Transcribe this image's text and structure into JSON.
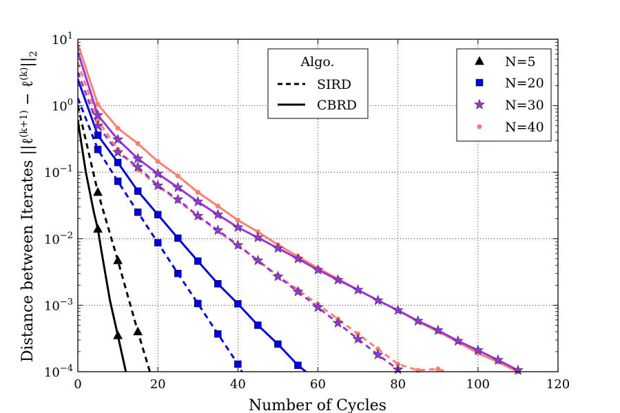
{
  "chart_data": {
    "type": "line",
    "title": "",
    "xlabel": "Number of Cycles",
    "ylabel": "Distance between Iterates ||ℓ(k+1) − ℓ(k)||2",
    "ylabel_parts": {
      "main": "Distance between Iterates ||ℓ",
      "sup1": "(k+1)",
      "mid": " − ℓ",
      "sup2": "(k)",
      "end": "||",
      "sub": "2"
    },
    "xlim": [
      0,
      120
    ],
    "ylim_log10": [
      -4,
      1
    ],
    "yscale": "log",
    "x_ticks": [
      0,
      20,
      40,
      60,
      80,
      100,
      120
    ],
    "y_tick_exponents": [
      -4,
      -3,
      -2,
      -1,
      0,
      1
    ],
    "y_tick_base": "10",
    "grid": true,
    "legend_algo": {
      "title": "Algo.",
      "placement": "top-center",
      "entries": [
        {
          "label": "SIRD",
          "style": "dashed"
        },
        {
          "label": "CBRD",
          "style": "solid"
        }
      ]
    },
    "legend_n": {
      "placement": "top-right",
      "entries": [
        {
          "label": "N=5",
          "marker": "triangle",
          "color": "#000000"
        },
        {
          "label": "N=20",
          "marker": "square",
          "color": "#0000dd"
        },
        {
          "label": "N=30",
          "marker": "star",
          "color": "#9933dd"
        },
        {
          "label": "N=40",
          "marker": "circle",
          "color": "#fa8072"
        }
      ]
    },
    "series": [
      {
        "name": "N=40 CBRD",
        "color": "#fa8072",
        "style": "solid",
        "marker": "circle",
        "x": [
          0,
          5,
          10,
          15,
          20,
          25,
          30,
          35,
          40,
          45,
          50,
          55,
          60,
          65,
          70,
          75,
          80,
          85,
          90,
          95,
          100,
          105,
          110
        ],
        "y": [
          8.5,
          1.05,
          0.46,
          0.27,
          0.145,
          0.088,
          0.05,
          0.031,
          0.019,
          0.0127,
          0.0081,
          0.0054,
          0.0036,
          0.0025,
          0.0017,
          0.00118,
          0.00083,
          0.00057,
          0.0004,
          0.00028,
          0.00019,
          0.00014,
          0.0001
        ]
      },
      {
        "name": "N=40 SIRD",
        "color": "#fa8072",
        "style": "dashed",
        "marker": "circle",
        "x": [
          0,
          5,
          10,
          15,
          20,
          25,
          30,
          35,
          40,
          45,
          50,
          55,
          60,
          65,
          70,
          75,
          80,
          85,
          90,
          92
        ],
        "y": [
          4.5,
          0.6,
          0.22,
          0.11,
          0.062,
          0.037,
          0.022,
          0.013,
          0.0079,
          0.0047,
          0.0028,
          0.0017,
          0.00103,
          0.00062,
          0.00037,
          0.00022,
          0.00013,
          0.000105,
          0.00011,
          0.0001
        ]
      },
      {
        "name": "N=30 CBRD",
        "color": "#9933dd",
        "style": "solid",
        "marker": "star",
        "x": [
          0,
          5,
          10,
          15,
          20,
          25,
          30,
          35,
          40,
          45,
          50,
          55,
          60,
          65,
          70,
          75,
          80,
          85,
          90,
          95,
          100,
          105,
          110
        ],
        "y": [
          6.5,
          0.72,
          0.31,
          0.16,
          0.095,
          0.059,
          0.036,
          0.023,
          0.0148,
          0.0104,
          0.0072,
          0.005,
          0.0034,
          0.0024,
          0.0017,
          0.00118,
          0.00084,
          0.00058,
          0.00042,
          0.00029,
          0.00021,
          0.00015,
          0.000105
        ]
      },
      {
        "name": "N=30 SIRD",
        "color": "#9933dd",
        "style": "dashed",
        "marker": "star",
        "x": [
          0,
          5,
          10,
          15,
          20,
          25,
          30,
          35,
          40,
          45,
          50,
          55,
          60,
          65,
          70,
          75,
          80
        ],
        "y": [
          3.2,
          0.5,
          0.2,
          0.12,
          0.063,
          0.039,
          0.022,
          0.0134,
          0.008,
          0.0047,
          0.0027,
          0.0016,
          0.00093,
          0.00054,
          0.00031,
          0.00018,
          0.000108
        ]
      },
      {
        "name": "N=20 CBRD",
        "color": "#0000dd",
        "style": "solid",
        "marker": "square",
        "x": [
          0,
          5,
          10,
          15,
          20,
          25,
          30,
          35,
          40,
          45,
          50,
          55,
          57
        ],
        "y": [
          2.5,
          0.36,
          0.14,
          0.052,
          0.023,
          0.0102,
          0.0046,
          0.0021,
          0.00105,
          0.0005,
          0.00026,
          0.000125,
          0.0001
        ]
      },
      {
        "name": "N=20 SIRD",
        "color": "#0000dd",
        "style": "dashed",
        "marker": "square",
        "x": [
          0,
          5,
          10,
          15,
          20,
          25,
          30,
          35,
          40,
          41
        ],
        "y": [
          1.3,
          0.22,
          0.073,
          0.025,
          0.0087,
          0.003,
          0.00106,
          0.00037,
          0.00013,
          0.0001
        ]
      },
      {
        "name": "N=5 CBRD",
        "color": "#000000",
        "style": "solid",
        "marker": "triangle",
        "x": [
          0,
          2,
          4,
          5,
          6,
          8,
          10,
          12
        ],
        "y": [
          0.6,
          0.1,
          0.025,
          0.014,
          0.006,
          0.0012,
          0.00035,
          0.0001
        ]
      },
      {
        "name": "N=5 SIRD",
        "color": "#000000",
        "style": "dashed",
        "marker": "triangle",
        "x": [
          0,
          5,
          10,
          15,
          18
        ],
        "y": [
          1.0,
          0.05,
          0.0047,
          0.0004,
          0.0001
        ]
      }
    ]
  }
}
